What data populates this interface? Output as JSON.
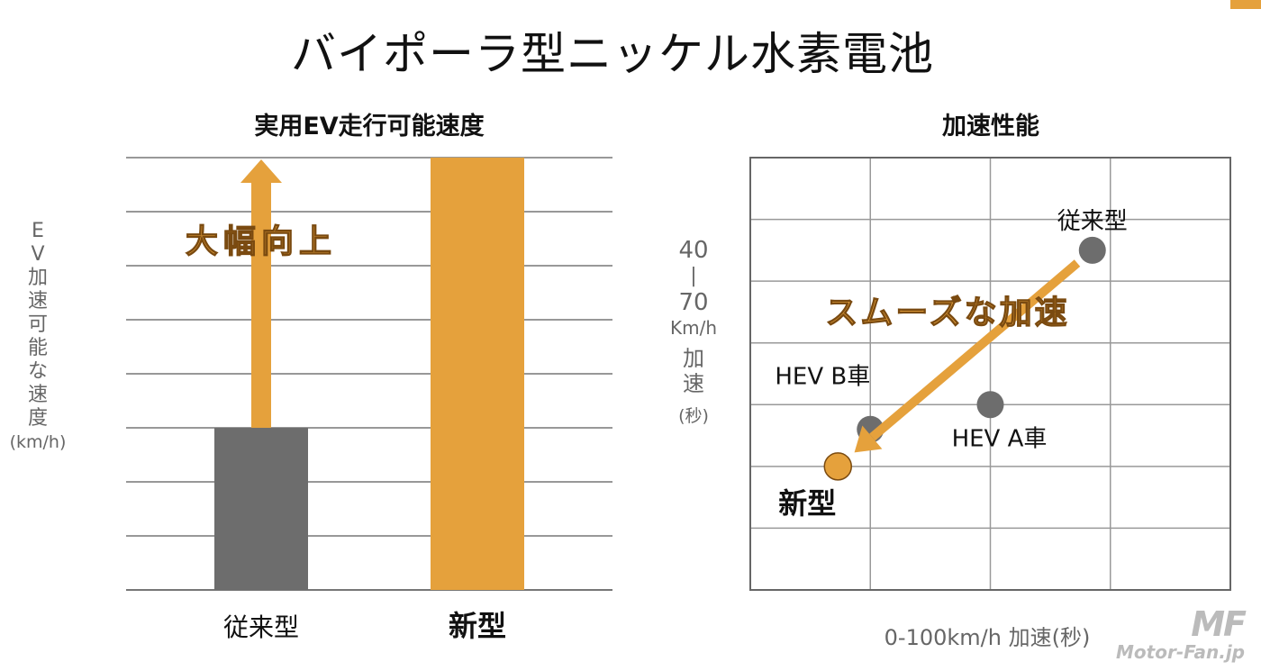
{
  "page": {
    "title": "バイポーラ型ニッケル水素電池",
    "accent_color": "#e5a13c",
    "gray_color": "#6d6d6d",
    "logo_mark": "MF",
    "logo_text": "Motor-Fan.jp"
  },
  "chart_data": [
    {
      "type": "bar",
      "title": "実用EV走行可能速度",
      "ylabel_chars": [
        "E",
        "V",
        "加",
        "速",
        "可",
        "能",
        "な",
        "速",
        "度"
      ],
      "yunit": "(km/h)",
      "categories": [
        "従来型",
        "新型"
      ],
      "values": [
        3,
        8
      ],
      "ylim": [
        0,
        8
      ],
      "grid": true,
      "bar_colors": [
        "#6d6d6d",
        "#e5a13c"
      ],
      "annotation": "大幅向上"
    },
    {
      "type": "scatter",
      "title": "加速性能",
      "xlabel": "0-100km/h 加速(秒)",
      "ylabel_top": "40",
      "ylabel_dash": "|",
      "ylabel_bottom": "70",
      "ylabel_unit": "Km/h",
      "ylabel_chars": [
        "加",
        "速"
      ],
      "ylabel_suffix": "(秒)",
      "xlim": [
        0,
        4
      ],
      "ylim": [
        0,
        7
      ],
      "grid": true,
      "points": [
        {
          "label": "従来型",
          "x": 2.85,
          "y": 5.5,
          "color": "#6d6d6d"
        },
        {
          "label": "HEV B車",
          "x": 1.0,
          "y": 2.6,
          "color": "#6d6d6d"
        },
        {
          "label": "HEV A車",
          "x": 2.0,
          "y": 3.0,
          "color": "#6d6d6d"
        },
        {
          "label": "新型",
          "x": 0.73,
          "y": 2.0,
          "color": "#e5a13c"
        }
      ],
      "annotation": "スムーズな加速"
    }
  ]
}
